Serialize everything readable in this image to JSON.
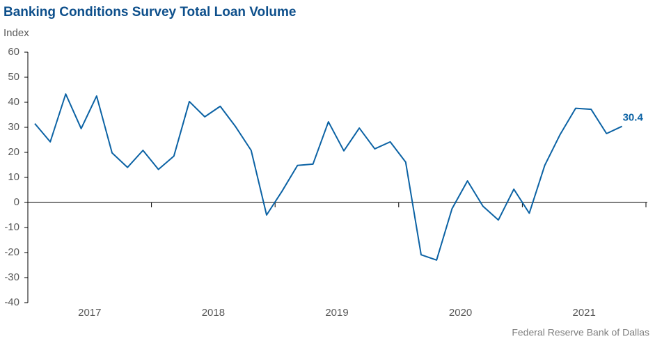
{
  "chart_data": {
    "type": "line",
    "title": "Banking Conditions Survey Total Loan Volume",
    "y_label": "Index",
    "source": "Federal Reserve Bank of Dallas",
    "years": [
      "2017",
      "2018",
      "2019",
      "2020",
      "2021"
    ],
    "series": [
      {
        "name": "Total Loan Volume",
        "color": "#0b62a4",
        "values": [
          31.5,
          24.2,
          43.3,
          29.5,
          42.5,
          19.8,
          14,
          20.8,
          13.2,
          18.5,
          40.3,
          34.2,
          38.4,
          30.2,
          20.8,
          -5,
          4.5,
          14.8,
          15.3,
          32.2,
          20.6,
          29.7,
          21.4,
          24.2,
          16.1,
          -20.9,
          -23,
          -2.5,
          8.6,
          -1.5,
          -7,
          5.3,
          -4.3,
          14.8,
          27.2,
          37.6,
          37.2,
          27.5,
          30.4
        ]
      }
    ],
    "last_label": "30.4",
    "ylim": [
      -40,
      60
    ],
    "yticks": [
      -40,
      -30,
      -20,
      -10,
      0,
      10,
      20,
      30,
      40,
      50,
      60
    ]
  }
}
